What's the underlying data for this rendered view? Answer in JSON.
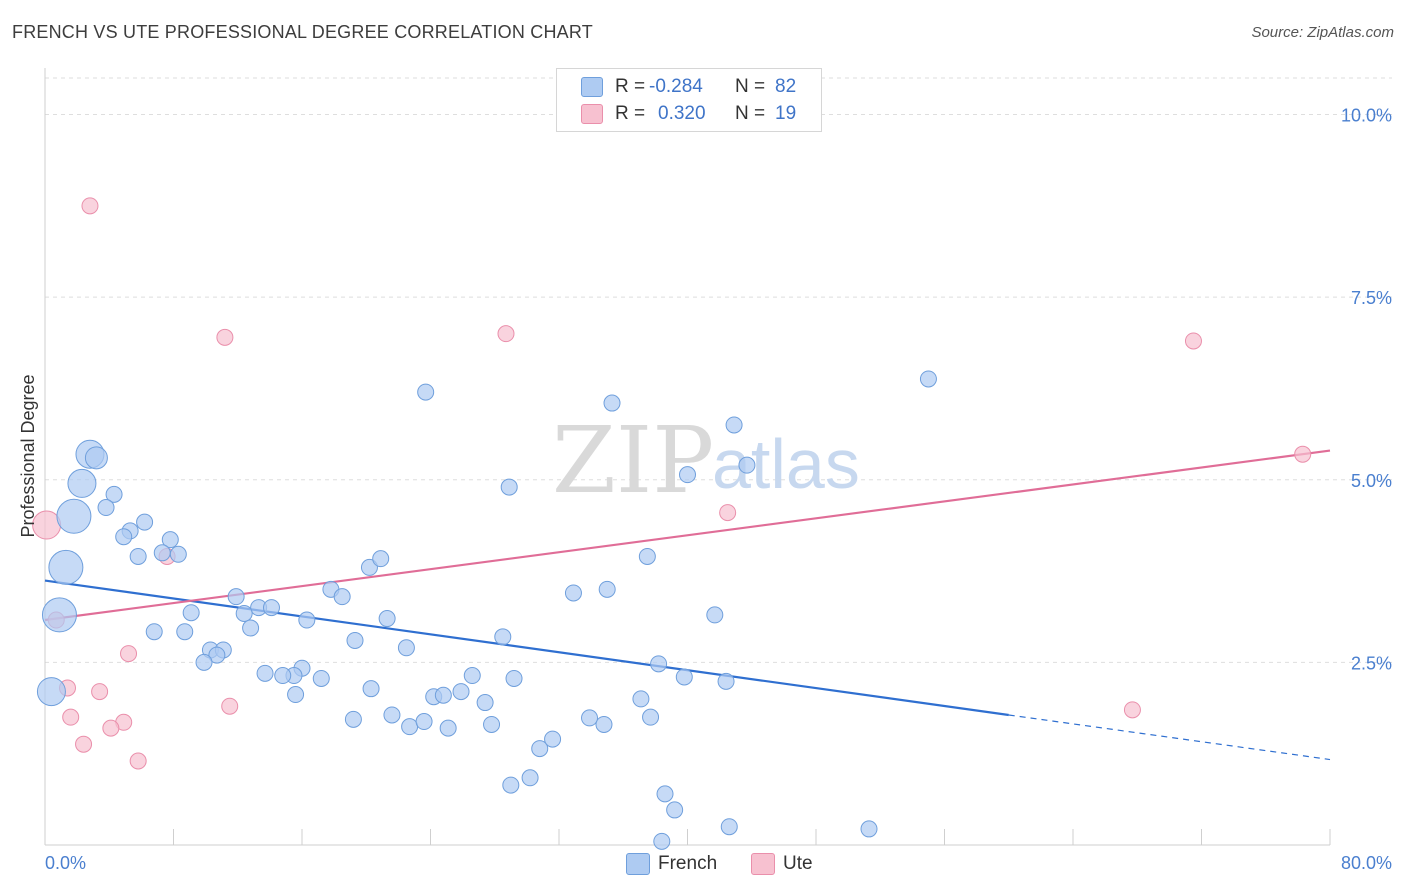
{
  "title": "FRENCH VS UTE PROFESSIONAL DEGREE CORRELATION CHART",
  "source": "Source: ZipAtlas.com",
  "watermark": {
    "zip": "ZIP",
    "atlas": "atlas"
  },
  "legend": {
    "rows": [
      {
        "name": "French",
        "r_label": "R =",
        "r_value": "-0.284",
        "n_label": "N =",
        "n_value": "82"
      },
      {
        "name": "Ute",
        "r_label": "R =",
        "r_value": "0.320",
        "n_label": "N =",
        "n_value": "19"
      }
    ]
  },
  "colors": {
    "french_fill": "#aecbf2",
    "french_stroke": "#6f9fdc",
    "french_line": "#2f6fd0",
    "ute_fill": "#f7c1d0",
    "ute_stroke": "#ea8fab",
    "ute_line": "#e06d97",
    "tick": "#4a7fcf",
    "grid": "#dedede"
  },
  "chart_data": {
    "type": "scatter",
    "title": "FRENCH VS UTE PROFESSIONAL DEGREE CORRELATION CHART",
    "xlabel": "",
    "ylabel": "Professional Degree",
    "xlim": [
      0,
      80
    ],
    "ylim": [
      0,
      10.5
    ],
    "x_tick_labels": [
      "0.0%",
      "80.0%"
    ],
    "y_ticks": [
      2.5,
      5.0,
      7.5,
      10.0
    ],
    "y_tick_labels": [
      "2.5%",
      "5.0%",
      "7.5%",
      "10.0%"
    ],
    "grid": true,
    "legend_position": "top-center",
    "series": [
      {
        "name": "French",
        "r": -0.284,
        "n": 82,
        "trend": {
          "x0": 0,
          "y0": 3.62,
          "x1": 60,
          "y1": 1.78,
          "dashed_to_x": 80,
          "dashed_to_y": 1.17
        },
        "points": [
          [
            2.8,
            5.35,
            "l"
          ],
          [
            3.2,
            5.3,
            "m"
          ],
          [
            2.3,
            4.95,
            "l"
          ],
          [
            1.8,
            4.5,
            "xl"
          ],
          [
            1.3,
            3.8,
            "xl"
          ],
          [
            0.9,
            3.15,
            "xl"
          ],
          [
            0.4,
            2.1,
            "l"
          ],
          [
            4.3,
            4.8
          ],
          [
            3.8,
            4.62
          ],
          [
            6.2,
            4.42
          ],
          [
            5.3,
            4.3
          ],
          [
            4.9,
            4.22
          ],
          [
            7.8,
            4.18
          ],
          [
            7.3,
            4.0
          ],
          [
            8.3,
            3.98
          ],
          [
            5.8,
            3.95
          ],
          [
            11.9,
            3.4
          ],
          [
            13.3,
            3.25
          ],
          [
            14.1,
            3.25
          ],
          [
            12.4,
            3.17
          ],
          [
            9.1,
            3.18
          ],
          [
            16.3,
            3.08
          ],
          [
            8.7,
            2.92
          ],
          [
            6.8,
            2.92
          ],
          [
            12.8,
            2.97
          ],
          [
            10.3,
            2.67
          ],
          [
            11.1,
            2.67
          ],
          [
            10.7,
            2.6
          ],
          [
            9.9,
            2.5
          ],
          [
            16.0,
            2.42
          ],
          [
            15.5,
            2.32
          ],
          [
            13.7,
            2.35
          ],
          [
            14.8,
            2.32
          ],
          [
            17.2,
            2.28
          ],
          [
            15.6,
            2.06
          ],
          [
            20.3,
            2.14
          ],
          [
            19.2,
            1.72
          ],
          [
            21.6,
            1.78
          ],
          [
            22.7,
            1.62
          ],
          [
            23.6,
            1.69
          ],
          [
            25.1,
            1.6
          ],
          [
            24.2,
            2.03
          ],
          [
            24.8,
            2.05
          ],
          [
            25.9,
            2.1
          ],
          [
            26.6,
            2.32
          ],
          [
            27.4,
            1.95
          ],
          [
            27.8,
            1.65
          ],
          [
            28.5,
            2.85
          ],
          [
            29.2,
            2.28
          ],
          [
            30.8,
            1.32
          ],
          [
            30.2,
            0.92
          ],
          [
            29.0,
            0.82
          ],
          [
            31.6,
            1.45
          ],
          [
            32.9,
            3.45
          ],
          [
            35.0,
            3.5
          ],
          [
            34.8,
            1.65
          ],
          [
            33.9,
            1.74
          ],
          [
            37.1,
            2.0
          ],
          [
            35.3,
            6.05
          ],
          [
            37.7,
            1.75
          ],
          [
            38.2,
            2.48
          ],
          [
            37.5,
            3.95
          ],
          [
            39.8,
            2.3
          ],
          [
            38.6,
            0.7
          ],
          [
            39.2,
            0.48
          ],
          [
            38.4,
            0.05
          ],
          [
            40.0,
            5.07
          ],
          [
            41.7,
            3.15
          ],
          [
            42.4,
            2.24
          ],
          [
            42.6,
            0.25
          ],
          [
            42.9,
            5.75
          ],
          [
            43.7,
            5.2
          ],
          [
            17.8,
            3.5
          ],
          [
            18.5,
            3.4
          ],
          [
            19.3,
            2.8
          ],
          [
            20.2,
            3.8
          ],
          [
            20.9,
            3.92
          ],
          [
            21.3,
            3.1
          ],
          [
            22.5,
            2.7
          ],
          [
            23.7,
            6.2
          ],
          [
            28.9,
            4.9
          ],
          [
            51.3,
            0.22
          ],
          [
            55.0,
            6.38
          ]
        ]
      },
      {
        "name": "Ute",
        "r": 0.32,
        "n": 19,
        "trend": {
          "x0": 0,
          "y0": 3.08,
          "x1": 80,
          "y1": 5.4
        },
        "points": [
          [
            2.8,
            8.75
          ],
          [
            11.2,
            6.95
          ],
          [
            28.7,
            7.0
          ],
          [
            71.5,
            6.9
          ],
          [
            78.3,
            5.35
          ],
          [
            42.5,
            4.55
          ],
          [
            0.1,
            4.38,
            "l"
          ],
          [
            7.6,
            3.95
          ],
          [
            0.7,
            3.08
          ],
          [
            5.2,
            2.62
          ],
          [
            1.4,
            2.15
          ],
          [
            3.4,
            2.1
          ],
          [
            11.5,
            1.9
          ],
          [
            1.6,
            1.75
          ],
          [
            4.9,
            1.68
          ],
          [
            4.1,
            1.6
          ],
          [
            2.4,
            1.38
          ],
          [
            5.8,
            1.15
          ],
          [
            67.7,
            1.85
          ]
        ]
      }
    ]
  }
}
